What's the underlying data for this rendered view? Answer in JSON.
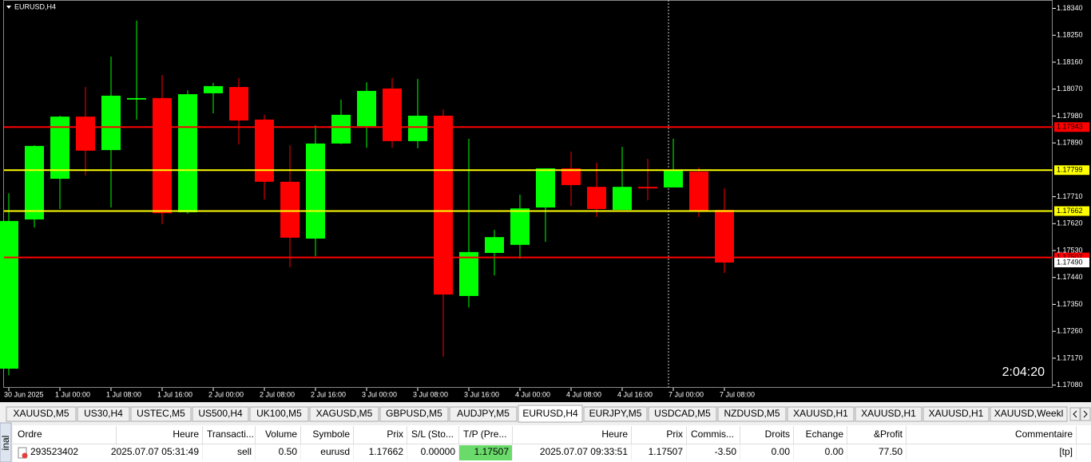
{
  "chart_data": {
    "type": "candlestick",
    "title": "EURUSD,H4",
    "categories": [
      "30 Jun 2025",
      null,
      "1 Jul 00:00",
      null,
      "1 Jul 08:00",
      null,
      "1 Jul 16:00",
      null,
      "2 Jul 00:00",
      null,
      "2 Jul 08:00",
      null,
      "2 Jul 16:00",
      null,
      "3 Jul 00:00",
      null,
      "3 Jul 08:00",
      null,
      "3 Jul 16:00",
      null,
      "4 Jul 00:00",
      null,
      "4 Jul 08:00",
      null,
      "4 Jul 16:00",
      null,
      "7 Jul 00:00",
      null,
      "7 Jul 08:00"
    ],
    "open": [
      1.17135,
      1.17634,
      1.1777,
      1.17978,
      1.17866,
      1.18035,
      1.1804,
      1.17658,
      1.18056,
      1.18077,
      1.17968,
      1.1776,
      1.1757,
      1.17888,
      1.17946,
      1.18072,
      1.17896,
      1.17981,
      1.17378,
      1.17522,
      1.17549,
      1.17674,
      1.17805,
      1.17743,
      1.17666,
      1.17743,
      1.17741,
      1.17794,
      1.17666
    ],
    "high": [
      1.17722,
      1.17882,
      1.17981,
      1.18077,
      1.18179,
      1.18299,
      1.18117,
      1.18066,
      1.18091,
      1.18107,
      1.17984,
      1.17882,
      1.17949,
      1.18035,
      1.18093,
      1.18107,
      1.18104,
      1.18002,
      1.17904,
      1.17599,
      1.17717,
      1.17805,
      1.17861,
      1.17824,
      1.17877,
      1.17837,
      1.17904,
      1.17808,
      1.17738
    ],
    "low": [
      1.17113,
      1.17607,
      1.17669,
      1.17781,
      1.17674,
      1.17968,
      1.17618,
      1.17653,
      1.17989,
      1.17885,
      1.17701,
      1.17474,
      1.17511,
      1.17886,
      1.17874,
      1.17874,
      1.17872,
      1.17175,
      1.1734,
      1.17447,
      1.17503,
      1.17559,
      1.17679,
      1.17642,
      1.17666,
      1.17698,
      1.17741,
      1.17642,
      1.17455
    ],
    "close": [
      1.17629,
      1.1788,
      1.17978,
      1.17864,
      1.18048,
      1.1804,
      1.17655,
      1.18053,
      1.1808,
      1.17965,
      1.1776,
      1.17573,
      1.17888,
      1.17984,
      1.18064,
      1.17896,
      1.17981,
      1.17383,
      1.17525,
      1.17575,
      1.17671,
      1.17805,
      1.17749,
      1.17669,
      1.17743,
      1.17738,
      1.178,
      1.17661,
      1.1749
    ],
    "up_color": "#00ff00",
    "down_color": "#ff0000",
    "ylim": [
      1.17071,
      1.18368
    ],
    "yticks": [
      {
        "value": 1.1834,
        "label": "1.18340"
      },
      {
        "value": 1.1825,
        "label": "1.18250"
      },
      {
        "value": 1.1816,
        "label": "1.18160"
      },
      {
        "value": 1.1807,
        "label": "1.18070"
      },
      {
        "value": 1.1798,
        "label": "1.17980"
      },
      {
        "value": 1.1789,
        "label": "1.17890"
      },
      {
        "value": 1.1771,
        "label": "1.17710"
      },
      {
        "value": 1.1762,
        "label": "1.17620"
      },
      {
        "value": 1.1753,
        "label": "1.17530"
      },
      {
        "value": 1.1744,
        "label": "1.17440"
      },
      {
        "value": 1.1735,
        "label": "1.17350"
      },
      {
        "value": 1.1726,
        "label": "1.17260"
      },
      {
        "value": 1.1717,
        "label": "1.17170"
      },
      {
        "value": 1.1708,
        "label": "1.17080"
      }
    ],
    "levels": [
      {
        "value": 1.17943,
        "color": "#ff0000"
      },
      {
        "value": 1.17799,
        "color": "#ffff00"
      },
      {
        "value": 1.17662,
        "color": "#ffff00"
      },
      {
        "value": 1.17507,
        "color": "#ff0000"
      }
    ],
    "price": {
      "value": 1.1749,
      "label": "1.17490"
    },
    "timer": "2:04:20"
  },
  "tabs": [
    "XAUUSD,M5",
    "US30,H4",
    "USTEC,M5",
    "US500,H4",
    "UK100,M5",
    "XAGUSD,M5",
    "GBPUSD,M5",
    "AUDJPY,M5",
    "EURUSD,H4",
    "EURJPY,M5",
    "USDCAD,M5",
    "NZDUSD,M5",
    "XAUUSD,H1",
    "XAUUSD,H1",
    "XAUUSD,H1",
    "XAUUSD,Weekl"
  ],
  "active_tab": 8,
  "sidebar": "inal",
  "table": {
    "headers": [
      "Ordre",
      "Heure",
      "Transacti...",
      "Volume",
      "Symbole",
      "Prix",
      "S/L (Sto...",
      "T/P (Pre...",
      "Heure",
      "Prix",
      "Commis...",
      "Droits",
      "Echange",
      "&Profit",
      "Commentaire"
    ],
    "rows": [
      [
        "293523402",
        "2025.07.07 05:31:49",
        "sell",
        "0.50",
        "eurusd",
        "1.17662",
        "0.00000",
        "1.17507",
        "2025.07.07 09:33:51",
        "1.17507",
        "-3.50",
        "0.00",
        "0.00",
        "77.50",
        "[tp]"
      ]
    ]
  }
}
